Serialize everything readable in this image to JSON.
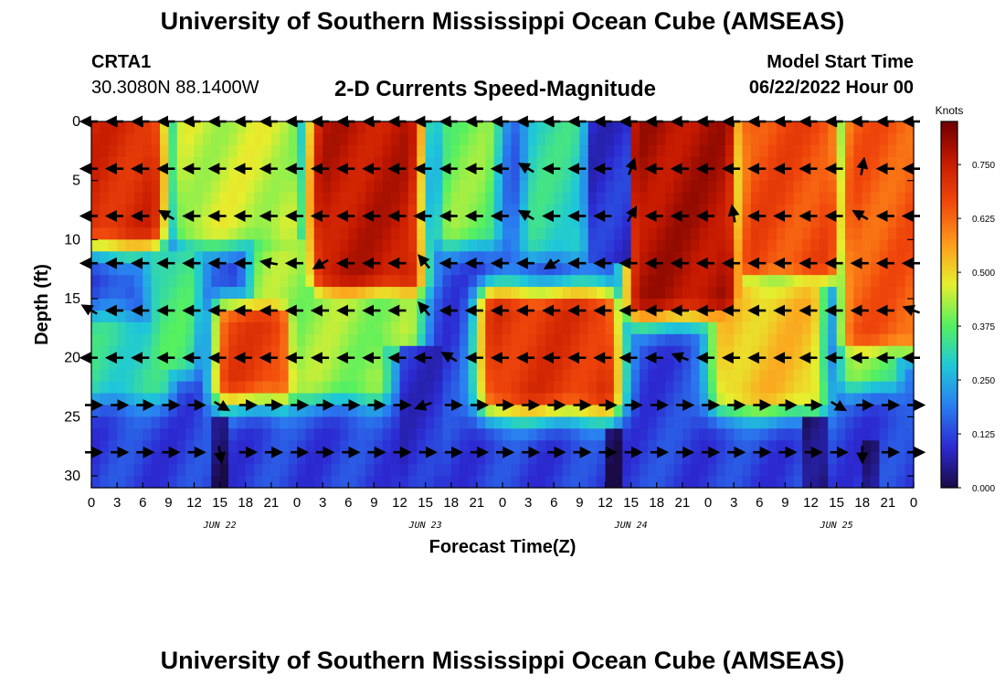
{
  "header": {
    "title": "University of Southern Mississippi Ocean Cube (AMSEAS)",
    "station": "CRTA1",
    "coords": "30.3080N  88.1400W",
    "plot_title": "2-D Currents Speed-Magnitude",
    "start_label": "Model Start Time",
    "start_value": "06/22/2022 Hour 00"
  },
  "footer": {
    "title": "University of Southern Mississippi Ocean Cube (AMSEAS)"
  },
  "chart_data": {
    "type": "heatmap",
    "title": "2-D Currents Speed-Magnitude",
    "xlabel": "Forecast Time(Z)",
    "ylabel": "Depth (ft)",
    "x_ticks": [
      "0",
      "3",
      "6",
      "9",
      "12",
      "15",
      "18",
      "21",
      "0",
      "3",
      "6",
      "9",
      "12",
      "15",
      "18",
      "21",
      "0",
      "3",
      "6",
      "9",
      "12",
      "15",
      "18",
      "21",
      "0",
      "3",
      "6",
      "9",
      "12",
      "15",
      "18",
      "21",
      "0"
    ],
    "date_labels": [
      {
        "hour": 15,
        "label": "JUN 22"
      },
      {
        "hour": 39,
        "label": "JUN 23"
      },
      {
        "hour": 63,
        "label": "JUN 24"
      },
      {
        "hour": 87,
        "label": "JUN 25"
      }
    ],
    "xlim_hours": [
      0,
      96
    ],
    "y_ticks": [
      0,
      5,
      10,
      15,
      20,
      25,
      30
    ],
    "ylim_ft": [
      0,
      31
    ],
    "colorbar": {
      "title": "Knots",
      "tick_values": [
        0.0,
        0.125,
        0.25,
        0.375,
        0.5,
        0.625,
        0.75
      ],
      "tick_labels": [
        "0.000",
        "0.125",
        "0.250",
        "0.375",
        "0.500",
        "0.625",
        "0.750"
      ],
      "range": [
        0,
        0.85
      ],
      "colormap": [
        "#1a0a45",
        "#2c2ad2",
        "#2a7df0",
        "#1fc8d8",
        "#55f060",
        "#e6ee2e",
        "#ff9a1c",
        "#f1480c",
        "#c61a00",
        "#6e0000"
      ]
    },
    "speed_regions": [
      {
        "h0": 0,
        "h1": 7,
        "d0": 0,
        "d1": 9,
        "v": 0.72
      },
      {
        "h0": 7,
        "h1": 10,
        "d0": 0,
        "d1": 9,
        "v": 0.14
      },
      {
        "h0": 11,
        "h1": 23,
        "d0": 0,
        "d1": 9,
        "v": 0.45
      },
      {
        "h0": 27,
        "h1": 37,
        "d0": 0,
        "d1": 13,
        "v": 0.76
      },
      {
        "h0": 38,
        "h1": 40,
        "d0": 0,
        "d1": 9,
        "v": 0.2
      },
      {
        "h0": 42,
        "h1": 46,
        "d0": 0,
        "d1": 9,
        "v": 0.4
      },
      {
        "h0": 52,
        "h1": 56,
        "d0": 0,
        "d1": 10,
        "v": 0.32
      },
      {
        "h0": 64,
        "h1": 74,
        "d0": 0,
        "d1": 15,
        "v": 0.78
      },
      {
        "h0": 77,
        "h1": 86,
        "d0": 0,
        "d1": 12,
        "v": 0.66
      },
      {
        "h0": 89,
        "h1": 96,
        "d0": 0,
        "d1": 18,
        "v": 0.64
      },
      {
        "h0": 8,
        "h1": 11,
        "d0": 12,
        "d1": 20,
        "v": 0.35
      },
      {
        "h0": 20,
        "h1": 37,
        "d0": 11,
        "d1": 18,
        "v": 0.42
      },
      {
        "h0": 0,
        "h1": 8,
        "d0": 18,
        "d1": 22,
        "v": 0.32
      },
      {
        "h0": 16,
        "h1": 22,
        "d0": 17,
        "d1": 22,
        "v": 0.68
      },
      {
        "h0": 23,
        "h1": 33,
        "d0": 17,
        "d1": 22,
        "v": 0.42
      },
      {
        "h0": 47,
        "h1": 60,
        "d0": 16,
        "d1": 23,
        "v": 0.7
      },
      {
        "h0": 74,
        "h1": 84,
        "d0": 15,
        "d1": 23,
        "v": 0.52
      },
      {
        "h0": 89,
        "h1": 93,
        "d0": 17,
        "d1": 21,
        "v": 0.4
      },
      {
        "h0": 14,
        "h1": 16,
        "d0": 25,
        "d1": 31,
        "v": 0.02
      },
      {
        "h0": 60,
        "h1": 62,
        "d0": 26,
        "d1": 31,
        "v": 0.02
      },
      {
        "h0": 83,
        "h1": 86,
        "d0": 25,
        "d1": 31,
        "v": 0.03
      },
      {
        "h0": 90,
        "h1": 92,
        "d0": 27,
        "d1": 31,
        "v": 0.04
      },
      {
        "h0": 36,
        "h1": 41,
        "d0": 19,
        "d1": 31,
        "v": 0.1
      },
      {
        "h0": 58,
        "h1": 63,
        "d0": 0,
        "d1": 12,
        "v": 0.1
      }
    ],
    "vector_depths_ft": [
      0,
      4,
      8,
      12,
      16,
      20,
      24,
      28
    ],
    "vector_hours": [
      0,
      3,
      6,
      9,
      12,
      15,
      18,
      21,
      24,
      27,
      30,
      33,
      36,
      39,
      42,
      45,
      48,
      51,
      54,
      57,
      60,
      63,
      66,
      69,
      72,
      75,
      78,
      81,
      84,
      87,
      90,
      93,
      96
    ],
    "vector_directions_deg": [
      [
        180,
        180,
        180,
        180,
        180,
        180,
        180,
        180,
        180,
        180,
        180,
        180,
        180,
        180,
        180,
        180,
        180,
        180,
        180,
        180,
        180,
        180,
        180,
        180,
        180,
        180,
        180,
        180,
        180,
        180,
        180,
        180,
        180
      ],
      [
        180,
        180,
        180,
        180,
        180,
        180,
        180,
        180,
        180,
        180,
        180,
        180,
        180,
        180,
        180,
        180,
        180,
        150,
        180,
        180,
        180,
        70,
        180,
        180,
        180,
        180,
        180,
        180,
        180,
        180,
        80,
        180,
        180
      ],
      [
        180,
        180,
        180,
        150,
        180,
        180,
        180,
        180,
        180,
        180,
        180,
        180,
        180,
        180,
        180,
        180,
        180,
        150,
        180,
        180,
        180,
        60,
        180,
        180,
        180,
        100,
        180,
        180,
        180,
        180,
        150,
        180,
        180
      ],
      [
        180,
        180,
        180,
        180,
        180,
        180,
        180,
        170,
        180,
        210,
        180,
        180,
        180,
        130,
        180,
        180,
        180,
        180,
        210,
        180,
        180,
        180,
        180,
        180,
        180,
        180,
        180,
        180,
        180,
        180,
        180,
        180,
        180
      ],
      [
        150,
        180,
        180,
        180,
        180,
        180,
        180,
        180,
        180,
        180,
        180,
        180,
        180,
        130,
        180,
        180,
        180,
        180,
        180,
        180,
        180,
        180,
        180,
        180,
        180,
        180,
        180,
        180,
        180,
        180,
        180,
        180,
        160
      ],
      [
        180,
        180,
        180,
        180,
        180,
        180,
        180,
        180,
        180,
        180,
        180,
        180,
        180,
        180,
        150,
        180,
        180,
        180,
        180,
        180,
        180,
        180,
        180,
        160,
        180,
        180,
        180,
        180,
        180,
        180,
        180,
        180,
        180
      ],
      [
        0,
        0,
        0,
        0,
        0,
        330,
        0,
        0,
        0,
        0,
        0,
        0,
        0,
        200,
        0,
        0,
        0,
        0,
        0,
        0,
        0,
        0,
        0,
        0,
        0,
        0,
        0,
        0,
        0,
        330,
        0,
        0,
        0
      ],
      [
        0,
        0,
        0,
        0,
        0,
        280,
        0,
        0,
        0,
        0,
        0,
        0,
        0,
        0,
        0,
        0,
        0,
        0,
        0,
        0,
        0,
        0,
        0,
        0,
        0,
        0,
        0,
        0,
        0,
        0,
        270,
        0,
        0
      ]
    ]
  }
}
